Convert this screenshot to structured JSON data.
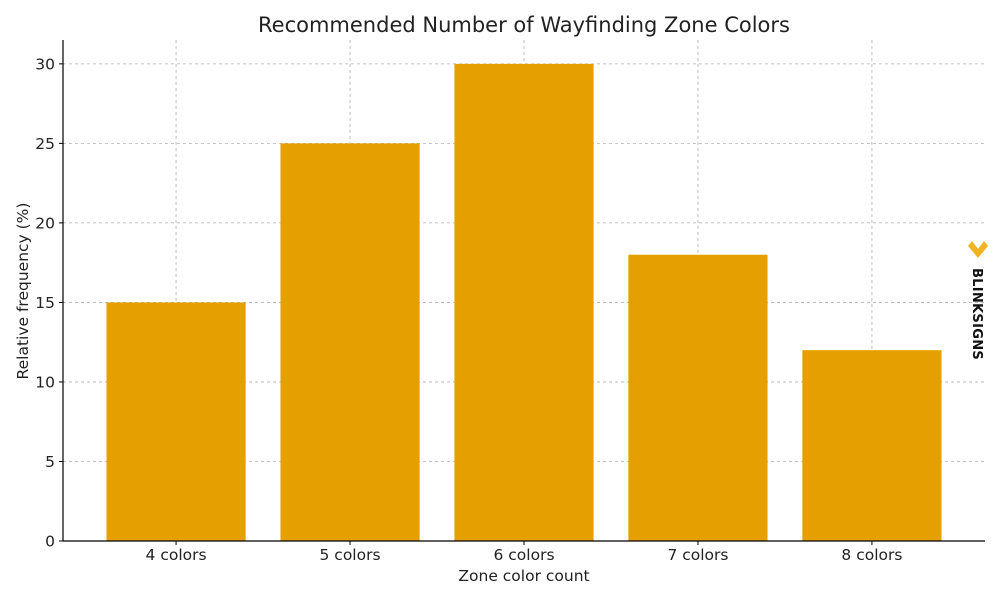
{
  "chart_data": {
    "type": "bar",
    "title": "Recommended Number of Wayfinding Zone Colors",
    "xlabel": "Zone color count",
    "ylabel": "Relative frequency (%)",
    "categories": [
      "4 colors",
      "5 colors",
      "6 colors",
      "7 colors",
      "8 colors"
    ],
    "values": [
      15,
      25,
      30,
      18,
      12
    ],
    "ylim": [
      0,
      31.5
    ],
    "yticks": [
      0,
      5,
      10,
      15,
      20,
      25,
      30
    ],
    "grid": true,
    "bar_color": "#e5a000"
  },
  "logo": {
    "text": "BLINKSIGNS",
    "color": "#f2b320"
  }
}
